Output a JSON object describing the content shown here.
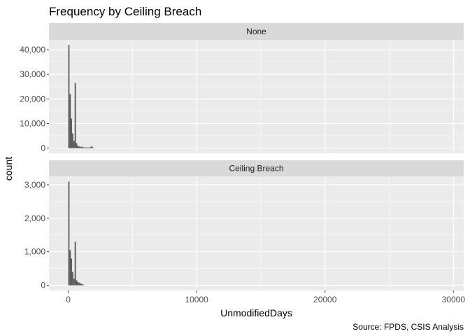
{
  "chart_data": {
    "type": "bar",
    "title": "Frequency by Ceiling Breach",
    "xlabel": "UnmodifiedDays",
    "ylabel": "count",
    "caption": "Source: FPDS, CSIS Analysis",
    "xlim": [
      -1500,
      30800
    ],
    "x_breaks": [
      0,
      10000,
      20000,
      30000
    ],
    "x_tick_labels": [
      "0",
      "10000",
      "20000",
      "30000"
    ],
    "x_minor_breaks": [
      5000,
      15000,
      25000
    ],
    "bin_width": 100,
    "grid": true,
    "facets": [
      {
        "name": "None",
        "ylim": [
          -2100,
          44000
        ],
        "y_breaks": [
          0,
          10000,
          20000,
          30000,
          40000
        ],
        "y_tick_labels": [
          "0",
          "10,000",
          "20,000",
          "30,000",
          "40,000"
        ],
        "y_minor_breaks": [
          5000,
          15000,
          25000,
          35000
        ],
        "bins": [
          {
            "x": 0,
            "count": 42000
          },
          {
            "x": 100,
            "count": 22000
          },
          {
            "x": 200,
            "count": 12000
          },
          {
            "x": 300,
            "count": 6000
          },
          {
            "x": 400,
            "count": 3000
          },
          {
            "x": 500,
            "count": 26500
          },
          {
            "x": 600,
            "count": 2000
          },
          {
            "x": 700,
            "count": 1000
          },
          {
            "x": 800,
            "count": 700
          },
          {
            "x": 900,
            "count": 500
          },
          {
            "x": 1000,
            "count": 600
          },
          {
            "x": 1100,
            "count": 400
          },
          {
            "x": 1200,
            "count": 300
          },
          {
            "x": 1300,
            "count": 300
          },
          {
            "x": 1400,
            "count": 250
          },
          {
            "x": 1500,
            "count": 300
          },
          {
            "x": 1600,
            "count": 200
          },
          {
            "x": 1700,
            "count": 500
          },
          {
            "x": 1800,
            "count": 700
          },
          {
            "x": 1900,
            "count": 200
          }
        ]
      },
      {
        "name": "Ceiling Breach",
        "ylim": [
          -155,
          3250
        ],
        "y_breaks": [
          0,
          1000,
          2000,
          3000
        ],
        "y_tick_labels": [
          "0",
          "1,000",
          "2,000",
          "3,000"
        ],
        "y_minor_breaks": [
          500,
          1500,
          2500
        ],
        "bins": [
          {
            "x": 0,
            "count": 3100
          },
          {
            "x": 100,
            "count": 1050
          },
          {
            "x": 200,
            "count": 800
          },
          {
            "x": 300,
            "count": 400
          },
          {
            "x": 400,
            "count": 200
          },
          {
            "x": 500,
            "count": 1300
          },
          {
            "x": 600,
            "count": 150
          },
          {
            "x": 700,
            "count": 100
          },
          {
            "x": 800,
            "count": 80
          },
          {
            "x": 900,
            "count": 60
          },
          {
            "x": 1000,
            "count": 40
          },
          {
            "x": 1100,
            "count": 25
          }
        ]
      }
    ]
  }
}
